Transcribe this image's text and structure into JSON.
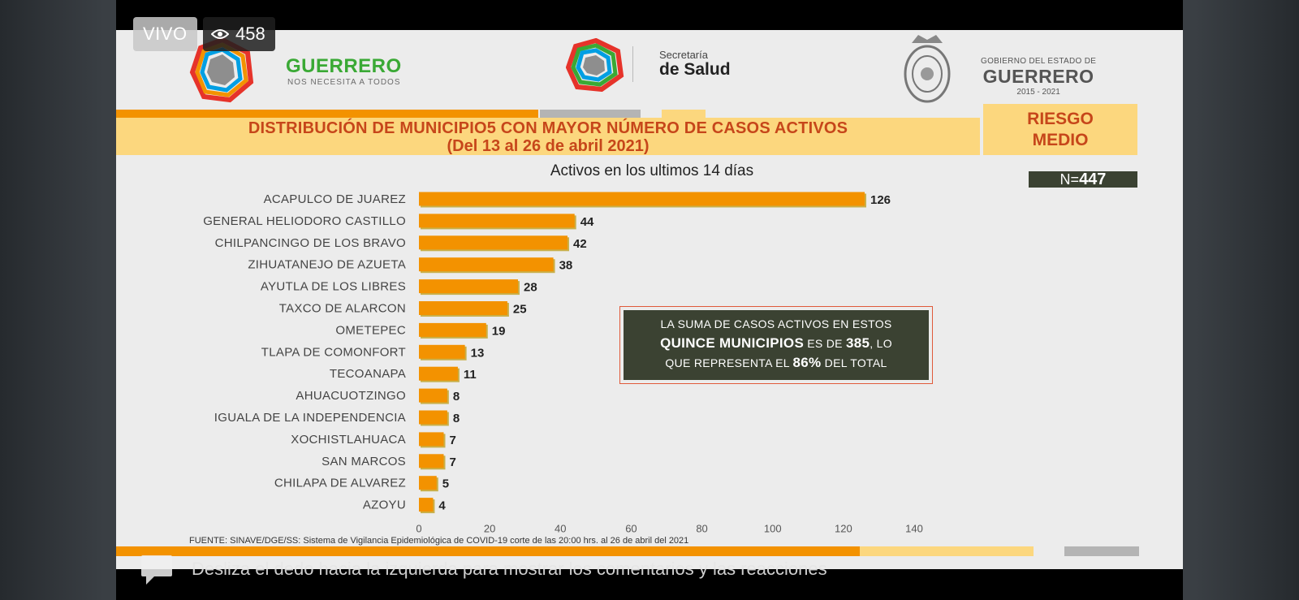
{
  "live": {
    "badge": "VIVO",
    "viewers": "458",
    "viewers_icon": "eye-icon"
  },
  "header": {
    "brand1_title": "GUERRERO",
    "brand1_tagline": "NOS NECESITA A TODOS",
    "brand2_line1": "Secretaría",
    "brand2_line2": "de Salud",
    "brand3_line1": "GOBIERNO DEL ESTADO DE",
    "brand3_line2": "GUERRERO",
    "brand3_line3": "2015 - 2021"
  },
  "title_line1": "DISTRIBUCIÓN DE MUNICIPIO5 CON MAYOR NÚMERO DE  CASOS ACTIVOS",
  "title_line2": "(Del 13 al 26 de abril 2021)",
  "risk_line1": "RIESGO",
  "risk_line2": "MEDIO",
  "n_prefix": "N=",
  "n_value": "447",
  "callout": {
    "line1": "LA SUMA DE CASOS ACTIVOS EN ESTOS",
    "line2_bold": "QUINCE MUNICIPIOS",
    "line2_mid": " ES DE ",
    "line2_num": "385",
    "line2_end": ", LO",
    "line3_start": "QUE REPRESENTA EL ",
    "line3_pct": "86%",
    "line3_end": " DEL TOTAL"
  },
  "source": "FUENTE: SINAVE/DGE/SS: Sistema de Vigilancia Epidemiológica de COVID-19 corte de las 20:00 hrs. al 26 de abril del 2021",
  "overlay_hint": "Desliza el dedo hacia la izquierda para mostrar los comentarios y las reacciones",
  "colors": {
    "bar": "#f39200",
    "accent_red": "#c6461a",
    "dark_box": "#3b4232",
    "band_yellow": "#fcd77e"
  },
  "chart_data": {
    "type": "bar",
    "orientation": "horizontal",
    "title": "Activos en los ultimos 14 días",
    "categories": [
      "ACAPULCO DE JUAREZ",
      "GENERAL HELIODORO CASTILLO",
      "CHILPANCINGO DE LOS BRAVO",
      "ZIHUATANEJO DE AZUETA",
      "AYUTLA DE LOS LIBRES",
      "TAXCO DE ALARCON",
      "OMETEPEC",
      "TLAPA DE COMONFORT",
      "TECOANAPA",
      "AHUACUOTZINGO",
      "IGUALA DE LA INDEPENDENCIA",
      "XOCHISTLAHUACA",
      "SAN MARCOS",
      "CHILAPA DE ALVAREZ",
      "AZOYU"
    ],
    "values": [
      126,
      44,
      42,
      38,
      28,
      25,
      19,
      13,
      11,
      8,
      8,
      7,
      7,
      5,
      4
    ],
    "xlim": [
      0,
      140
    ],
    "xticks": [
      0,
      20,
      40,
      60,
      80,
      100,
      120,
      140
    ],
    "grid": false,
    "legend": "none"
  }
}
